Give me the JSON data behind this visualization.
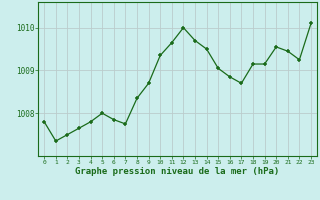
{
  "x": [
    0,
    1,
    2,
    3,
    4,
    5,
    6,
    7,
    8,
    9,
    10,
    11,
    12,
    13,
    14,
    15,
    16,
    17,
    18,
    19,
    20,
    21,
    22,
    23
  ],
  "y": [
    1007.8,
    1007.35,
    1007.5,
    1007.65,
    1007.8,
    1008.0,
    1007.85,
    1007.75,
    1008.35,
    1008.7,
    1009.35,
    1009.65,
    1010.0,
    1009.7,
    1009.5,
    1009.05,
    1008.85,
    1008.7,
    1009.15,
    1009.15,
    1009.55,
    1009.45,
    1009.25,
    1010.1
  ],
  "line_color": "#1a6b1a",
  "marker": "+",
  "bg_color": "#cceeed",
  "grid_color": "#bbcccc",
  "axis_color": "#1a6b1a",
  "xlabel": "Graphe pression niveau de la mer (hPa)",
  "xlabel_fontsize": 6.5,
  "yticks": [
    1008,
    1009,
    1010
  ],
  "ylim": [
    1007.0,
    1010.6
  ],
  "xlim": [
    -0.5,
    23.5
  ]
}
